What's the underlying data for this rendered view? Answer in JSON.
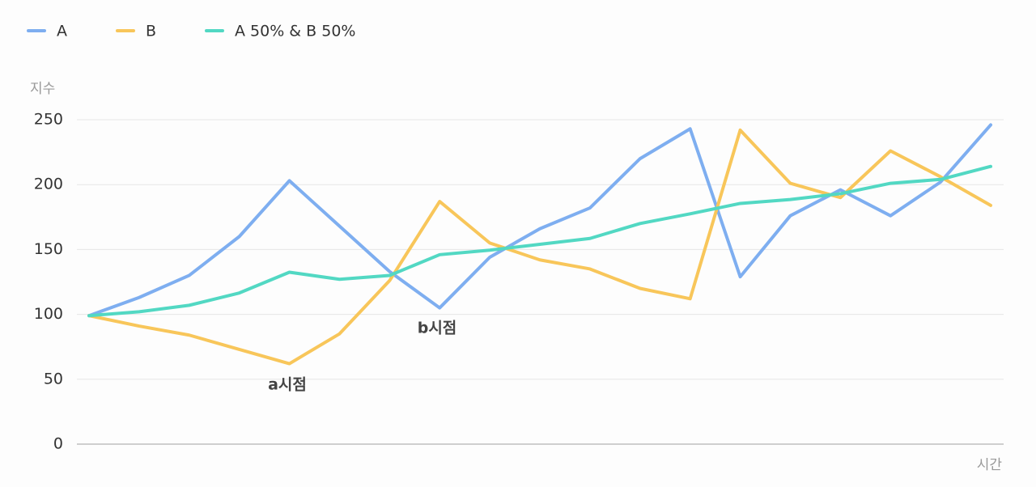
{
  "chart_data": {
    "type": "line",
    "y_label": "지수",
    "x_label": "시간",
    "categories": [
      null,
      null,
      null,
      null,
      null,
      null,
      null,
      null,
      null,
      null,
      null,
      null,
      null,
      null,
      null,
      null,
      null,
      null,
      null
    ],
    "series": [
      {
        "name": "A",
        "color": "#7eaef0",
        "values": [
          99,
          113,
          130,
          160,
          203,
          168,
          133,
          105,
          144,
          166,
          182,
          220,
          243,
          129,
          176,
          196,
          176,
          202,
          246
        ]
      },
      {
        "name": "B",
        "color": "#f8c65a",
        "values": [
          99,
          91,
          84,
          73,
          62,
          85,
          126,
          187,
          155,
          142,
          135,
          120,
          112,
          242,
          201,
          190,
          226,
          206,
          184
        ]
      },
      {
        "name": "A 50% & B 50%",
        "color": "#52d8c3",
        "values": [
          99,
          102,
          107,
          116.5,
          132.5,
          127,
          130,
          146,
          149.5,
          154,
          158.5,
          170,
          177.5,
          185.5,
          188.5,
          193,
          201,
          204,
          214
        ]
      }
    ],
    "annotations": [
      "a시점",
      "b시점"
    ],
    "ylim": [
      0,
      250
    ],
    "yticks": [
      0,
      50,
      100,
      150,
      200,
      250
    ],
    "grid": true,
    "legend": "top-left"
  }
}
